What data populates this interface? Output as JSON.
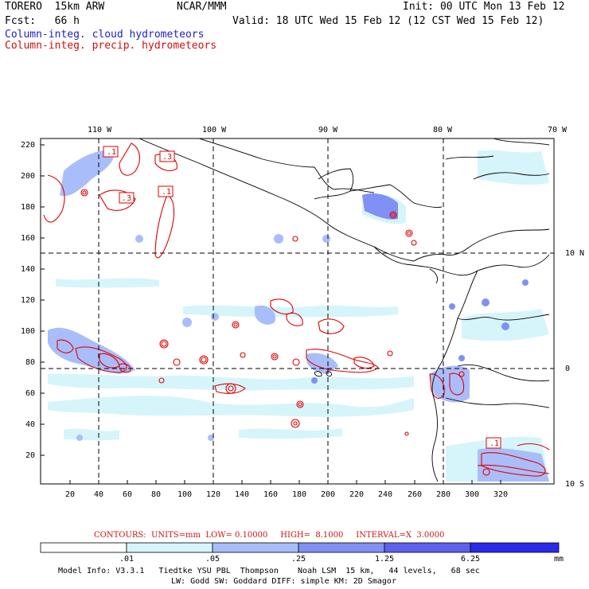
{
  "header": {
    "model": "TORERO  15km ARW",
    "org": "NCAR/MMM",
    "init": "Init: 00 UTC Mon 13 Feb 12",
    "fcst": "Fcst:   66 h",
    "valid": "Valid: 18 UTC Wed 15 Feb 12 (12 CST Wed 15 Feb 12)",
    "field_cloud": "Column-integ. cloud hydrometeors",
    "field_precip": "Column-integ. precip. hydrometeors"
  },
  "colors": {
    "cloud_label": "#2020c8",
    "precip_label": "#d01010",
    "contour": "#e00000",
    "land": "#000000",
    "levels": [
      "#ffffff",
      "#d6f5fb",
      "#aabdfb",
      "#8190f5",
      "#5e60ee",
      "#2a2aea"
    ]
  },
  "lon_labels": [
    "110 W",
    "100 W",
    "90 W",
    "80 W",
    "70 W"
  ],
  "lat_labels": [
    "10 N",
    "0",
    "10 S"
  ],
  "x_ticks": [
    "20",
    "40",
    "60",
    "80",
    "100",
    "120",
    "140",
    "160",
    "180",
    "200",
    "220",
    "240",
    "260",
    "280",
    "300",
    "320"
  ],
  "y_ticks": [
    "220",
    "200",
    "180",
    "160",
    "140",
    "120",
    "100",
    "80",
    "60",
    "40",
    "20"
  ],
  "contour_labels": [
    ".1",
    ".3",
    ".3",
    ".1",
    ".1"
  ],
  "contour_info": "CONTOURS:  UNITS=mm  LOW= 0.10000     HIGH=  8.1000     INTERVAL=X  3.0000",
  "colorbar": {
    "labels": [
      ".01",
      ".05",
      ".25",
      "1.25",
      "6.25"
    ],
    "unit": "mm"
  },
  "footer": {
    "line1": "Model Info: V3.3.1   Tiedtke YSU PBL  Thompson    Noah LSM  15 km,   44 levels,   68 sec",
    "line2": "LW: Godd SW: Goddard DIFF: simple KM: 2D Smagor"
  }
}
